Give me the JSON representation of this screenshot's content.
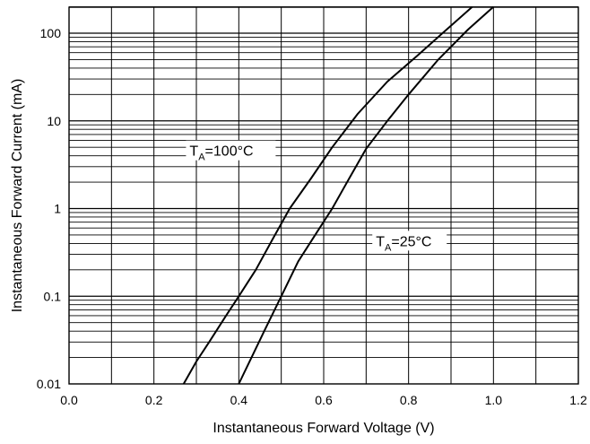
{
  "chart_data": {
    "type": "line",
    "title": "",
    "xlabel": "Instantaneous Forward Voltage (V)",
    "ylabel": "Instantaneous Forward Current (mA)",
    "xlim": [
      0.0,
      1.2
    ],
    "ylim": [
      0.01,
      200
    ],
    "yscale": "log",
    "grid": true,
    "x_ticks": [
      "0.0",
      "0.2",
      "0.4",
      "0.6",
      "0.8",
      "1.0",
      "1.2"
    ],
    "y_ticks": [
      "0.01",
      "0.1",
      "1",
      "10",
      "100"
    ],
    "series": [
      {
        "name": "TA=100°C",
        "label_main": "T",
        "label_sub": "A",
        "label_rest": "=100°C",
        "x": [
          0.27,
          0.3,
          0.33,
          0.37,
          0.4,
          0.44,
          0.48,
          0.52,
          0.57,
          0.62,
          0.68,
          0.75,
          0.82,
          0.88,
          0.95
        ],
        "y": [
          0.01,
          0.018,
          0.03,
          0.06,
          0.1,
          0.2,
          0.45,
          1.0,
          2.2,
          5.0,
          12,
          28,
          55,
          100,
          200
        ]
      },
      {
        "name": "TA=25°C",
        "label_main": "T",
        "label_sub": "A",
        "label_rest": "=25°C",
        "x": [
          0.4,
          0.43,
          0.46,
          0.5,
          0.54,
          0.58,
          0.62,
          0.66,
          0.7,
          0.75,
          0.8,
          0.87,
          0.94,
          1.0
        ],
        "y": [
          0.01,
          0.02,
          0.04,
          0.1,
          0.25,
          0.5,
          1.0,
          2.2,
          4.8,
          10,
          20,
          50,
          110,
          200
        ]
      }
    ]
  }
}
